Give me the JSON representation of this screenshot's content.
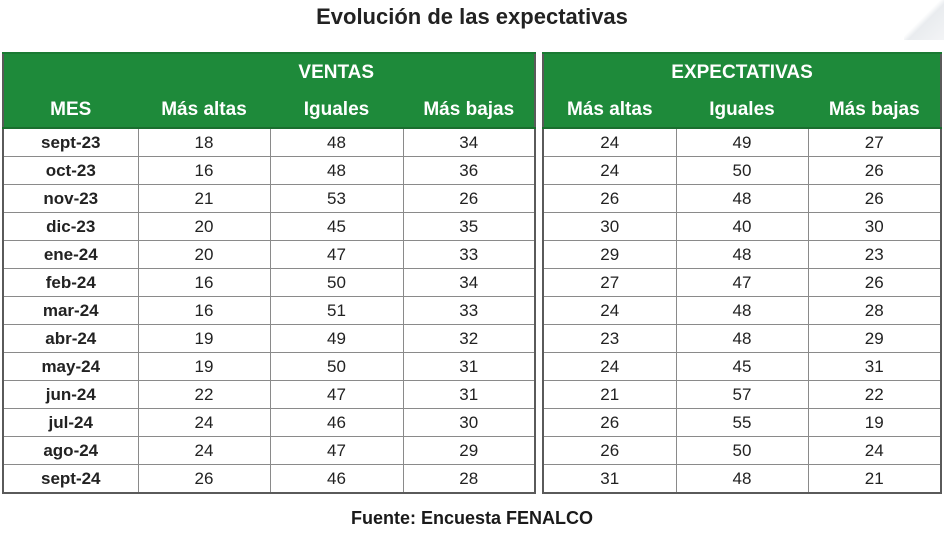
{
  "title": "Evolución de las expectativas",
  "source": "Fuente: Encuesta FENALCO",
  "ventas": {
    "group_label": "VENTAS",
    "month_header": "MES",
    "columns": [
      "Más altas",
      "Iguales",
      "Más bajas"
    ]
  },
  "expectativas": {
    "group_label": "EXPECTATIVAS",
    "columns": [
      "Más altas",
      "Iguales",
      "Más bajas"
    ]
  },
  "rows": [
    {
      "mes": "sept-23",
      "ventas": [
        "18",
        "48",
        "34"
      ],
      "expectativas": [
        "24",
        "49",
        "27"
      ]
    },
    {
      "mes": "oct-23",
      "ventas": [
        "16",
        "48",
        "36"
      ],
      "expectativas": [
        "24",
        "50",
        "26"
      ]
    },
    {
      "mes": "nov-23",
      "ventas": [
        "21",
        "53",
        "26"
      ],
      "expectativas": [
        "26",
        "48",
        "26"
      ]
    },
    {
      "mes": "dic-23",
      "ventas": [
        "20",
        "45",
        "35"
      ],
      "expectativas": [
        "30",
        "40",
        "30"
      ]
    },
    {
      "mes": "ene-24",
      "ventas": [
        "20",
        "47",
        "33"
      ],
      "expectativas": [
        "29",
        "48",
        "23"
      ]
    },
    {
      "mes": "feb-24",
      "ventas": [
        "16",
        "50",
        "34"
      ],
      "expectativas": [
        "27",
        "47",
        "26"
      ]
    },
    {
      "mes": "mar-24",
      "ventas": [
        "16",
        "51",
        "33"
      ],
      "expectativas": [
        "24",
        "48",
        "28"
      ]
    },
    {
      "mes": "abr-24",
      "ventas": [
        "19",
        "49",
        "32"
      ],
      "expectativas": [
        "23",
        "48",
        "29"
      ]
    },
    {
      "mes": "may-24",
      "ventas": [
        "19",
        "50",
        "31"
      ],
      "expectativas": [
        "24",
        "45",
        "31"
      ]
    },
    {
      "mes": "jun-24",
      "ventas": [
        "22",
        "47",
        "31"
      ],
      "expectativas": [
        "21",
        "57",
        "22"
      ]
    },
    {
      "mes": "jul-24",
      "ventas": [
        "24",
        "46",
        "30"
      ],
      "expectativas": [
        "26",
        "55",
        "19"
      ]
    },
    {
      "mes": "ago-24",
      "ventas": [
        "24",
        "47",
        "29"
      ],
      "expectativas": [
        "26",
        "50",
        "24"
      ]
    },
    {
      "mes": "sept-24",
      "ventas": [
        "26",
        "46",
        "28"
      ],
      "expectativas": [
        "31",
        "48",
        "21"
      ]
    }
  ],
  "colors": {
    "header_green": "#1e8a3a",
    "header_text": "#ffffff",
    "grid": "#8a8a8a"
  }
}
